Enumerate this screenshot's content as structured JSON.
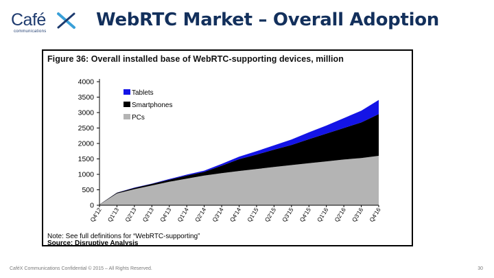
{
  "slide": {
    "logo_text": "Café",
    "logo_sub": "communications",
    "title": "WebRTC Market – Overall Adoption",
    "footer": "CaféX Communications Confidential © 2015 – All Rights Reserved.",
    "page_number": "30"
  },
  "colors": {
    "title": "#13305c",
    "tablets": "#1414e6",
    "smartphones": "#000000",
    "pcs": "#b4b4b4",
    "logo_x": "#3aa0d8"
  },
  "figure": {
    "heading": "Figure 36: Overall installed base of WebRTC-supporting devices, million",
    "note": "Note: See full definitions for “WebRTC-supporting”",
    "source": "Source: Disruptive Analysis"
  },
  "chart_data": {
    "type": "area",
    "stacked": true,
    "categories": [
      "Q4'12",
      "Q1'13",
      "Q2'13",
      "Q3'13",
      "Q4'13",
      "Q1'14",
      "Q2'14",
      "Q3'14",
      "Q4'14",
      "Q1'15",
      "Q2'15",
      "Q3'15",
      "Q4'15",
      "Q1'16",
      "Q2'16",
      "Q3'16",
      "Q4'16"
    ],
    "yticks": [
      0,
      500,
      1000,
      1500,
      2000,
      2500,
      3000,
      3500,
      4000
    ],
    "ylim": [
      0,
      4000
    ],
    "legend_position": "top-left",
    "series": [
      {
        "name": "PCs",
        "color": "#b4b4b4",
        "values": [
          20,
          380,
          520,
          640,
          760,
          860,
          960,
          1040,
          1110,
          1170,
          1240,
          1300,
          1360,
          1420,
          1480,
          1530,
          1600
        ]
      },
      {
        "name": "Smartphones",
        "color": "#000000",
        "values": [
          5,
          25,
          40,
          50,
          70,
          100,
          120,
          240,
          380,
          470,
          560,
          650,
          780,
          900,
          1020,
          1150,
          1350
        ]
      },
      {
        "name": "Tablets",
        "color": "#1414e6",
        "values": [
          0,
          5,
          10,
          10,
          20,
          30,
          40,
          60,
          80,
          110,
          140,
          180,
          220,
          260,
          320,
          380,
          460
        ]
      }
    ],
    "legend_order": [
      "Tablets",
      "Smartphones",
      "PCs"
    ]
  }
}
